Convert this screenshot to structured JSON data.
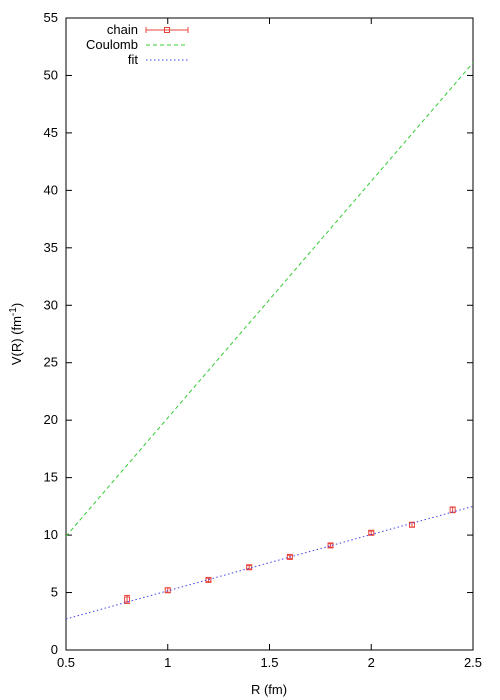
{
  "chart_data": {
    "type": "line",
    "xlabel": "R (fm)",
    "ylabel_base": "V(R) (fm",
    "ylabel_sup": "-1",
    "ylabel_close": ")",
    "xlim": [
      0.5,
      2.5
    ],
    "ylim": [
      0,
      55
    ],
    "x_ticks": [
      0.5,
      1,
      1.5,
      2,
      2.5
    ],
    "x_tick_labels": [
      "0.5",
      "1",
      "1.5",
      "2",
      "2.5"
    ],
    "y_ticks": [
      0,
      5,
      10,
      15,
      20,
      25,
      30,
      35,
      40,
      45,
      50,
      55
    ],
    "y_tick_labels": [
      "0",
      "5",
      "10",
      "15",
      "20",
      "25",
      "30",
      "35",
      "40",
      "45",
      "50",
      "55"
    ],
    "grid": false,
    "legend_position": "top-left",
    "series": [
      {
        "name": "chain",
        "kind": "points-with-errorbars",
        "color": "#e8453c",
        "x": [
          0.8,
          1.0,
          1.2,
          1.4,
          1.6,
          1.8,
          2.0,
          2.2,
          2.4
        ],
        "y": [
          4.4,
          5.2,
          6.1,
          7.2,
          8.1,
          9.1,
          10.2,
          10.9,
          12.2
        ],
        "err": [
          0.35,
          0.2,
          0.15,
          0.15,
          0.15,
          0.15,
          0.15,
          0.2,
          0.25
        ]
      },
      {
        "name": "Coulomb",
        "kind": "dashed-line",
        "color": "#33cc33",
        "x": [
          0.5,
          2.5
        ],
        "y": [
          9.9,
          51.1
        ]
      },
      {
        "name": "fit",
        "kind": "dotted-line",
        "color": "#4444ee",
        "x": [
          0.5,
          2.5
        ],
        "y": [
          2.7,
          12.5
        ]
      }
    ]
  }
}
